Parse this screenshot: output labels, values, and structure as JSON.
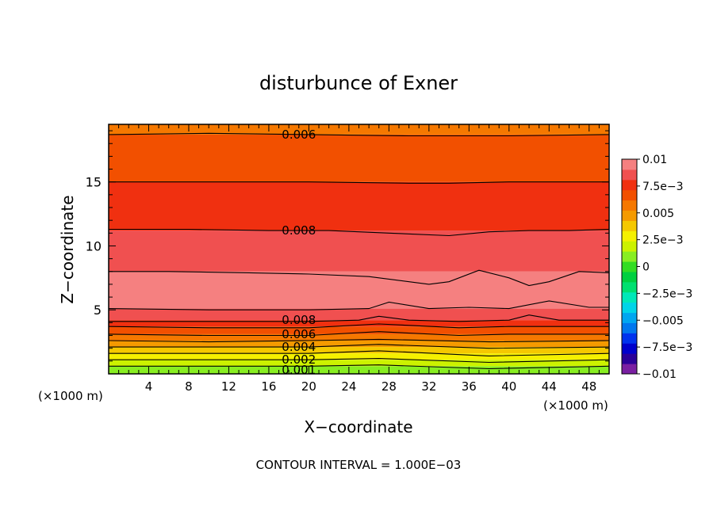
{
  "chart_data": {
    "type": "heatmap",
    "title": "disturbunce of Exner",
    "xlabel": "X−coordinate",
    "ylabel": "Z−coordinate",
    "x_unit_left": "(×1000 m)",
    "x_unit_right": "(×1000 m)",
    "xlim": [
      0,
      50
    ],
    "ylim": [
      0,
      19.5
    ],
    "x_ticks": [
      "4",
      "8",
      "12",
      "16",
      "20",
      "24",
      "28",
      "32",
      "36",
      "40",
      "44",
      "48"
    ],
    "x_tick_values": [
      4,
      8,
      12,
      16,
      20,
      24,
      28,
      32,
      36,
      40,
      44,
      48
    ],
    "y_ticks": [
      "5",
      "10",
      "15"
    ],
    "y_tick_values": [
      5,
      10,
      15
    ],
    "contour_interval_text": "CONTOUR INTERVAL = 1.000E−03",
    "colorbar": {
      "min": -0.01,
      "max": 0.01,
      "labels": [
        "0.01",
        "7.5e−3",
        "0.005",
        "2.5e−3",
        "0",
        "−2.5e−3",
        "−0.005",
        "−7.5e−3",
        "−0.01"
      ],
      "label_values": [
        0.01,
        0.0075,
        0.005,
        0.0025,
        0,
        -0.0025,
        -0.005,
        -0.0075,
        -0.01
      ],
      "colors": [
        "#7a1fa2",
        "#2a0099",
        "#0000cc",
        "#0033ee",
        "#0077ee",
        "#00a6f0",
        "#00d4e8",
        "#00e8b8",
        "#00e070",
        "#00d040",
        "#33dd22",
        "#88ee22",
        "#ccf200",
        "#f5f000",
        "#f5c800",
        "#f59a00",
        "#f57800",
        "#f25000",
        "#f03010",
        "#f05050",
        "#f58080"
      ]
    },
    "contour_labels": [
      {
        "text": "0.006",
        "x": 19,
        "z": 18.7
      },
      {
        "text": "0.008",
        "x": 19,
        "z": 11.2
      },
      {
        "text": "0.008",
        "x": 19,
        "z": 4.2
      },
      {
        "text": "0.006",
        "x": 19,
        "z": 3.1
      },
      {
        "text": "0.004",
        "x": 19,
        "z": 2.1
      },
      {
        "text": "0.002",
        "x": 19,
        "z": 1.1
      },
      {
        "text": "0.001",
        "x": 19,
        "z": 0.3
      }
    ],
    "contour_lines": [
      {
        "value": 0.006,
        "x": [
          0,
          10,
          20,
          30,
          40,
          50
        ],
        "z": [
          18.7,
          18.8,
          18.7,
          18.6,
          18.6,
          18.7
        ]
      },
      {
        "value": 0.007,
        "x": [
          0,
          10,
          20,
          30,
          34,
          40,
          50
        ],
        "z": [
          15.0,
          15.0,
          15.0,
          14.9,
          14.9,
          15.0,
          15.0
        ]
      },
      {
        "value": 0.008,
        "x": [
          0,
          8,
          16,
          22,
          28,
          34,
          38,
          42,
          46,
          50
        ],
        "z": [
          11.3,
          11.3,
          11.2,
          11.2,
          11.0,
          10.8,
          11.1,
          11.2,
          11.2,
          11.3
        ]
      },
      {
        "value": 0.009,
        "x": [
          0,
          6,
          14,
          20,
          26,
          32,
          34,
          37,
          40,
          42,
          44,
          47,
          50
        ],
        "z": [
          8.0,
          8.0,
          7.9,
          7.8,
          7.6,
          7.0,
          7.2,
          8.1,
          7.5,
          6.9,
          7.2,
          8.0,
          7.9
        ]
      },
      {
        "value": 0.009,
        "x": [
          0,
          10,
          20,
          26,
          28,
          32,
          36,
          40,
          44,
          48,
          50
        ],
        "z": [
          5.1,
          5.0,
          5.0,
          5.1,
          5.6,
          5.1,
          5.2,
          5.1,
          5.7,
          5.2,
          5.2
        ]
      },
      {
        "value": 0.008,
        "x": [
          0,
          10,
          20,
          25,
          27,
          30,
          35,
          40,
          42,
          45,
          50
        ],
        "z": [
          4.1,
          4.1,
          4.1,
          4.2,
          4.5,
          4.2,
          4.1,
          4.2,
          4.6,
          4.2,
          4.2
        ]
      },
      {
        "value": 0.007,
        "x": [
          0,
          10,
          20,
          27,
          35,
          40,
          50
        ],
        "z": [
          3.7,
          3.6,
          3.6,
          3.9,
          3.6,
          3.7,
          3.7
        ]
      },
      {
        "value": 0.006,
        "x": [
          0,
          10,
          20,
          27,
          35,
          40,
          50
        ],
        "z": [
          3.1,
          3.0,
          3.0,
          3.3,
          3.0,
          3.1,
          3.1
        ]
      },
      {
        "value": 0.005,
        "x": [
          0,
          10,
          20,
          27,
          38,
          50
        ],
        "z": [
          2.6,
          2.5,
          2.6,
          2.7,
          2.5,
          2.6
        ]
      },
      {
        "value": 0.004,
        "x": [
          0,
          10,
          20,
          27,
          38,
          50
        ],
        "z": [
          2.1,
          2.1,
          2.1,
          2.3,
          2.0,
          2.1
        ]
      },
      {
        "value": 0.003,
        "x": [
          0,
          10,
          20,
          27,
          38,
          50
        ],
        "z": [
          1.6,
          1.6,
          1.6,
          1.8,
          1.4,
          1.6
        ]
      },
      {
        "value": 0.002,
        "x": [
          0,
          10,
          20,
          27,
          38,
          50
        ],
        "z": [
          1.1,
          1.1,
          1.1,
          1.2,
          0.9,
          1.1
        ]
      },
      {
        "value": 0.001,
        "x": [
          0,
          10,
          20,
          27,
          38,
          50
        ],
        "z": [
          0.6,
          0.6,
          0.6,
          0.7,
          0.4,
          0.6
        ]
      }
    ],
    "field_bands": [
      {
        "z0": 0,
        "z1": 0.6,
        "value": 0.0005
      },
      {
        "z0": 0.6,
        "z1": 1.1,
        "value": 0.0015
      },
      {
        "z0": 1.1,
        "z1": 1.6,
        "value": 0.0025
      },
      {
        "z0": 1.6,
        "z1": 2.1,
        "value": 0.0035
      },
      {
        "z0": 2.1,
        "z1": 2.6,
        "value": 0.0045
      },
      {
        "z0": 2.6,
        "z1": 3.1,
        "value": 0.0055
      },
      {
        "z0": 3.1,
        "z1": 3.7,
        "value": 0.0065
      },
      {
        "z0": 3.7,
        "z1": 4.2,
        "value": 0.0075
      },
      {
        "z0": 4.2,
        "z1": 5.1,
        "value": 0.0085
      },
      {
        "z0": 5.1,
        "z1": 8.0,
        "value": 0.0095
      },
      {
        "z0": 8.0,
        "z1": 11.2,
        "value": 0.0085
      },
      {
        "z0": 11.2,
        "z1": 15.0,
        "value": 0.0075
      },
      {
        "z0": 15.0,
        "z1": 18.7,
        "value": 0.0065
      },
      {
        "z0": 18.7,
        "z1": 19.5,
        "value": 0.0055
      }
    ]
  }
}
